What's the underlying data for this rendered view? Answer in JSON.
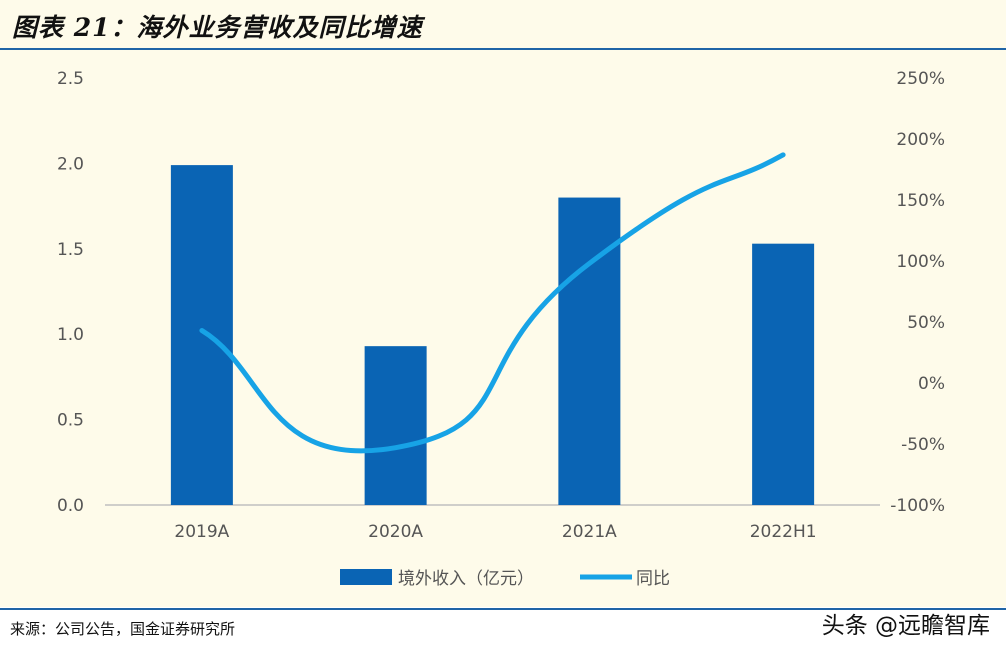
{
  "figure": {
    "title": "图表 21：海外业务营收及同比增速",
    "source": "来源：公司公告，国金证券研究所",
    "watermark": "头条 @远瞻智库"
  },
  "colors": {
    "bar": "#0a64b4",
    "line": "#17a3e6",
    "background": "#fefbea",
    "rule": "#1f64a7"
  },
  "chart_data": {
    "type": "bar",
    "categories": [
      "2019A",
      "2020A",
      "2021A",
      "2022H1"
    ],
    "series": [
      {
        "name": "境外收入（亿元）",
        "type": "bar",
        "axis": "left",
        "values": [
          1.99,
          0.93,
          1.8,
          1.53
        ]
      },
      {
        "name": "同比",
        "type": "line",
        "axis": "right",
        "smooth": true,
        "values": [
          43,
          -53,
          98,
          187
        ]
      }
    ],
    "left_axis": {
      "ylim": [
        0,
        2.5
      ],
      "ticks": [
        "0.0",
        "0.5",
        "1.0",
        "1.5",
        "2.0",
        "2.5"
      ]
    },
    "right_axis": {
      "ylim": [
        -100,
        250
      ],
      "ticks": [
        "-100%",
        "-50%",
        "0%",
        "50%",
        "100%",
        "150%",
        "200%",
        "250%"
      ]
    },
    "legend_position": "bottom",
    "grid": false
  }
}
